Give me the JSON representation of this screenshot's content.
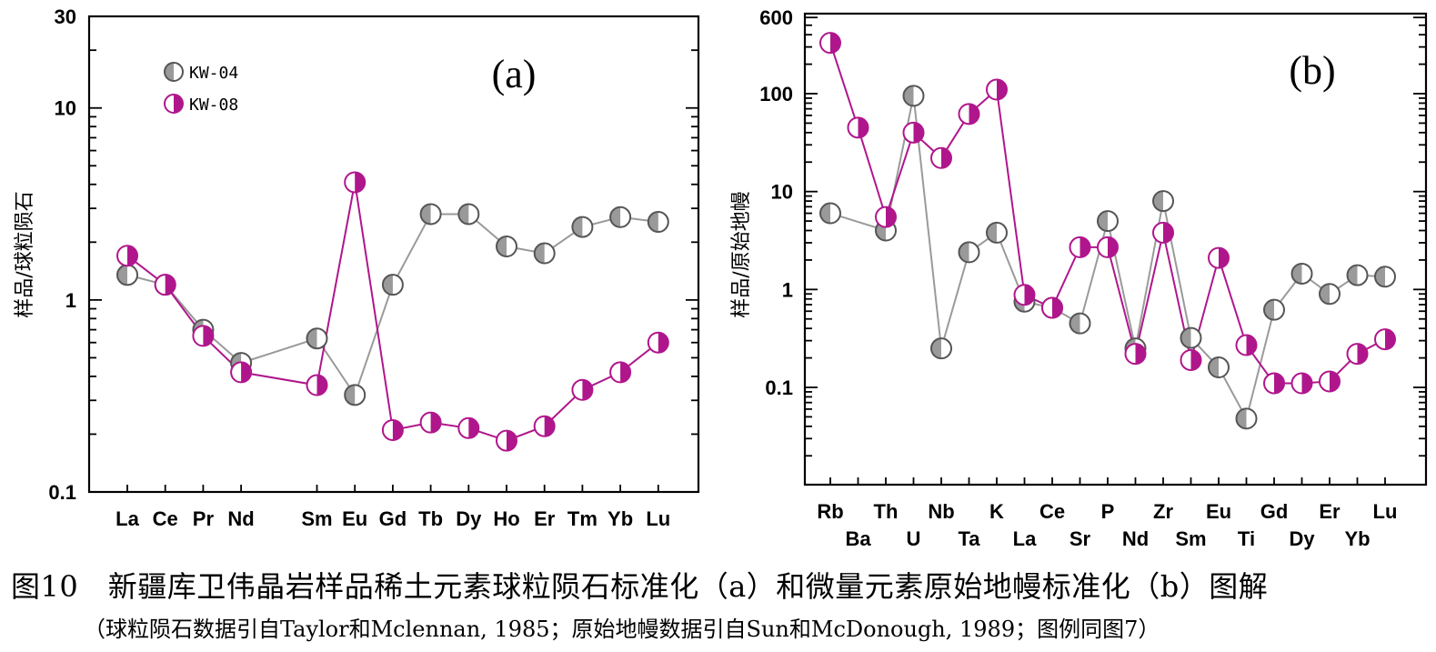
{
  "caption": {
    "title": "图10　新疆库卫伟晶岩样品稀土元素球粒陨石标准化（a）和微量元素原始地幔标准化（b）图解",
    "note": "（球粒陨石数据引自Taylor和Mclennan, 1985；原始地幔数据引自Sun和McDonough, 1989；图例同图7）"
  },
  "legend": [
    {
      "name": "KW-04",
      "color": "#9a9a9a"
    },
    {
      "name": "KW-08",
      "color": "#b0168c"
    }
  ],
  "chart_data": [
    {
      "type": "line",
      "panel": "(a)",
      "ylabel": "样品/球粒陨石",
      "yscale": "log",
      "ylim": [
        0.1,
        30
      ],
      "yticks": [
        0.1,
        1,
        10,
        30
      ],
      "ytick_labels": [
        "0.1",
        "1",
        "10",
        "30"
      ],
      "categories": [
        "La",
        "Ce",
        "Pr",
        "Nd",
        "Sm",
        "Eu",
        "Gd",
        "Tb",
        "Dy",
        "Ho",
        "Er",
        "Tm",
        "Yb",
        "Lu"
      ],
      "category_index": [
        0,
        1,
        2,
        3,
        5,
        6,
        7,
        8,
        9,
        10,
        11,
        12,
        13,
        14
      ],
      "series": [
        {
          "name": "KW-04",
          "values": [
            1.35,
            1.2,
            0.7,
            0.47,
            0.63,
            0.32,
            1.2,
            2.8,
            2.8,
            1.9,
            1.75,
            2.4,
            2.7,
            2.55
          ]
        },
        {
          "name": "KW-08",
          "values": [
            1.7,
            1.2,
            0.65,
            0.42,
            0.36,
            4.1,
            0.21,
            0.23,
            0.215,
            0.185,
            0.22,
            0.34,
            0.42,
            0.6
          ]
        }
      ]
    },
    {
      "type": "line",
      "panel": "(b)",
      "ylabel": "样品/原始地幔",
      "yscale": "log",
      "ylim": [
        0.01,
        600
      ],
      "yticks": [
        0.1,
        1,
        10,
        100,
        600
      ],
      "ytick_labels": [
        "0.1",
        "1",
        "10",
        "100",
        "600"
      ],
      "categories": [
        "Rb",
        "Ba",
        "Th",
        "U",
        "Nb",
        "Ta",
        "K",
        "La",
        "Ce",
        "Sr",
        "P",
        "Nd",
        "Zr",
        "Sm",
        "Eu",
        "Ti",
        "Gd",
        "Dy",
        "Er",
        "Yb",
        "Lu"
      ],
      "series": [
        {
          "name": "KW-04",
          "values": [
            6,
            null,
            4,
            95,
            0.25,
            2.4,
            3.8,
            0.75,
            0.65,
            0.45,
            5,
            0.25,
            8,
            0.32,
            0.16,
            0.048,
            0.62,
            1.45,
            0.9,
            1.4,
            1.35
          ]
        },
        {
          "name": "KW-08",
          "values": [
            330,
            45,
            5.5,
            40,
            22,
            62,
            110,
            0.88,
            0.65,
            2.7,
            2.7,
            0.22,
            3.8,
            0.19,
            2.1,
            0.27,
            0.11,
            0.11,
            0.115,
            0.22,
            0.31
          ]
        }
      ]
    }
  ]
}
